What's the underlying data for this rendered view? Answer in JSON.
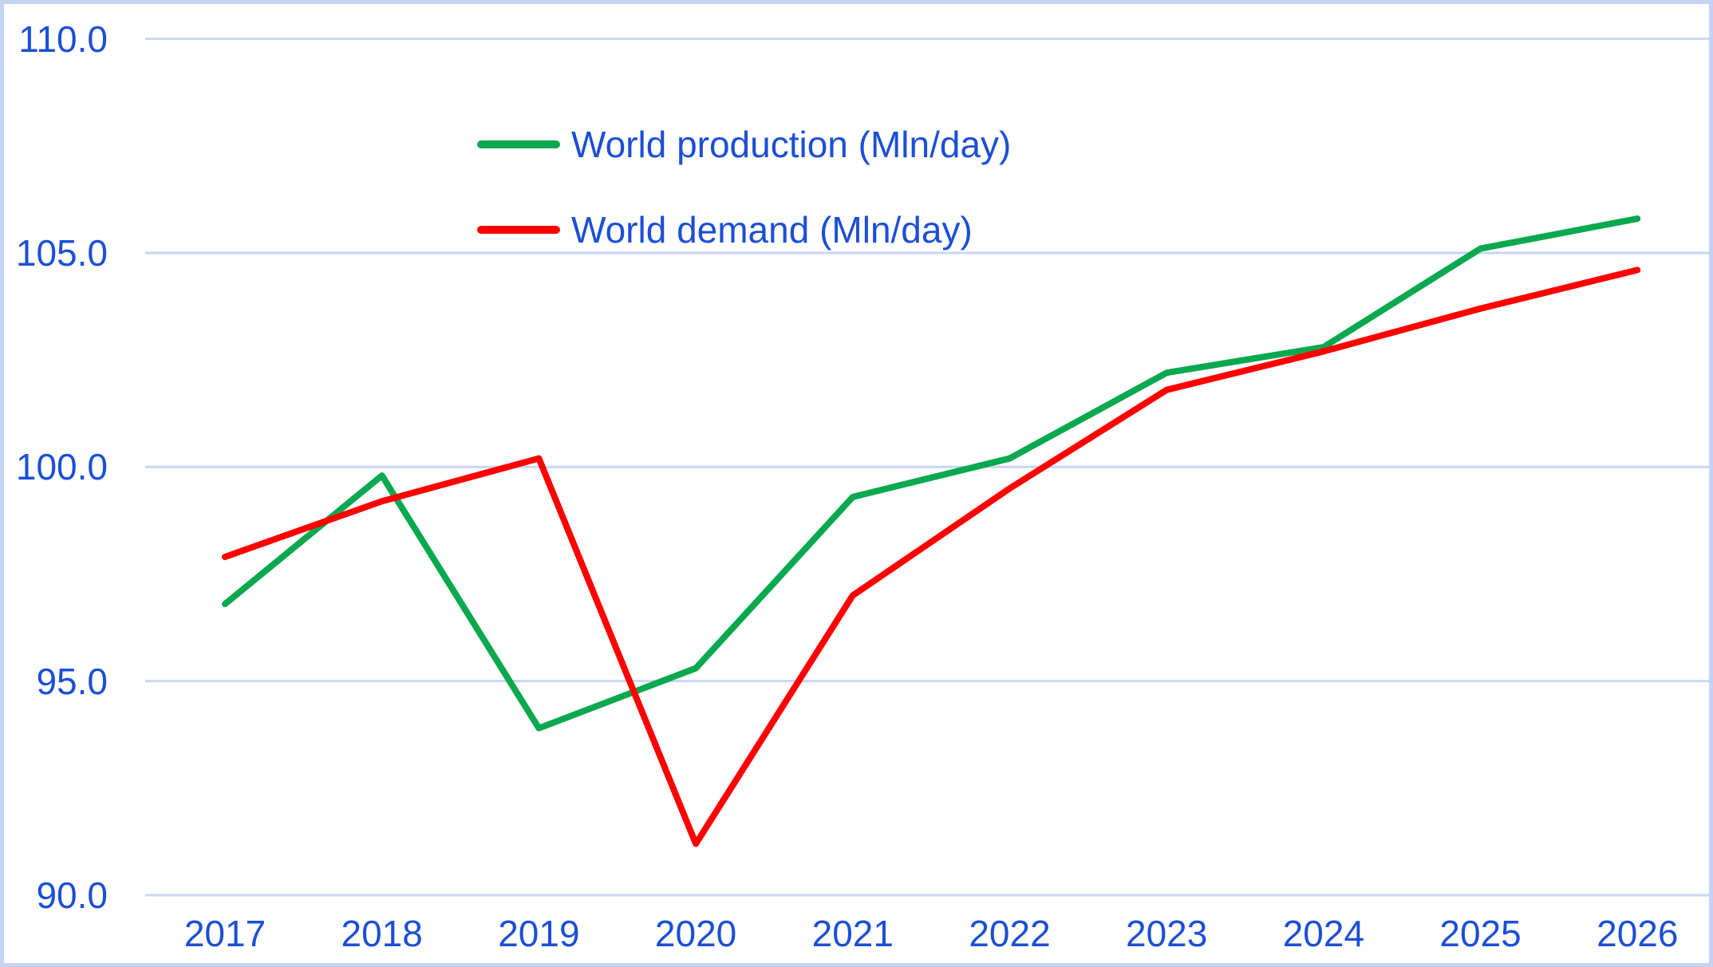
{
  "colors": {
    "axis_text": "#1c4fd6",
    "gridline": "#c9d6f4",
    "border": "#c5d3f2",
    "background": "#ffffff"
  },
  "legend": {
    "items": [
      {
        "label": "World production (Mln/day)",
        "series_key": "production"
      },
      {
        "label": "World demand (Mln/day)",
        "series_key": "demand"
      }
    ]
  },
  "chart_data": {
    "type": "line",
    "title": "",
    "xlabel": "",
    "ylabel": "",
    "categories": [
      "2017",
      "2018",
      "2019",
      "2020",
      "2021",
      "2022",
      "2023",
      "2024",
      "2025",
      "2026"
    ],
    "series": [
      {
        "key": "production",
        "name": "World production (Mln/day)",
        "color": "#0aa84f",
        "values": [
          96.8,
          99.8,
          93.9,
          95.3,
          99.3,
          100.2,
          102.2,
          102.8,
          105.1,
          105.8
        ]
      },
      {
        "key": "demand",
        "name": "World demand (Mln/day)",
        "color": "#ff0000",
        "values": [
          97.9,
          99.2,
          100.2,
          91.2,
          97.0,
          99.5,
          101.8,
          102.7,
          103.7,
          104.6
        ]
      }
    ],
    "ylim": [
      90,
      110
    ],
    "y_ticks": [
      110,
      105,
      100,
      95,
      90
    ],
    "y_tick_labels": [
      "110.0",
      "105.0",
      "100.0",
      "95.0",
      "90.0"
    ],
    "x_tick_labels": [
      "2017",
      "2018",
      "2019",
      "2020",
      "2021",
      "2022",
      "2023",
      "2024",
      "2025",
      "2026"
    ],
    "grid": "horizontal-only",
    "legend_position": "inside-top-center"
  }
}
